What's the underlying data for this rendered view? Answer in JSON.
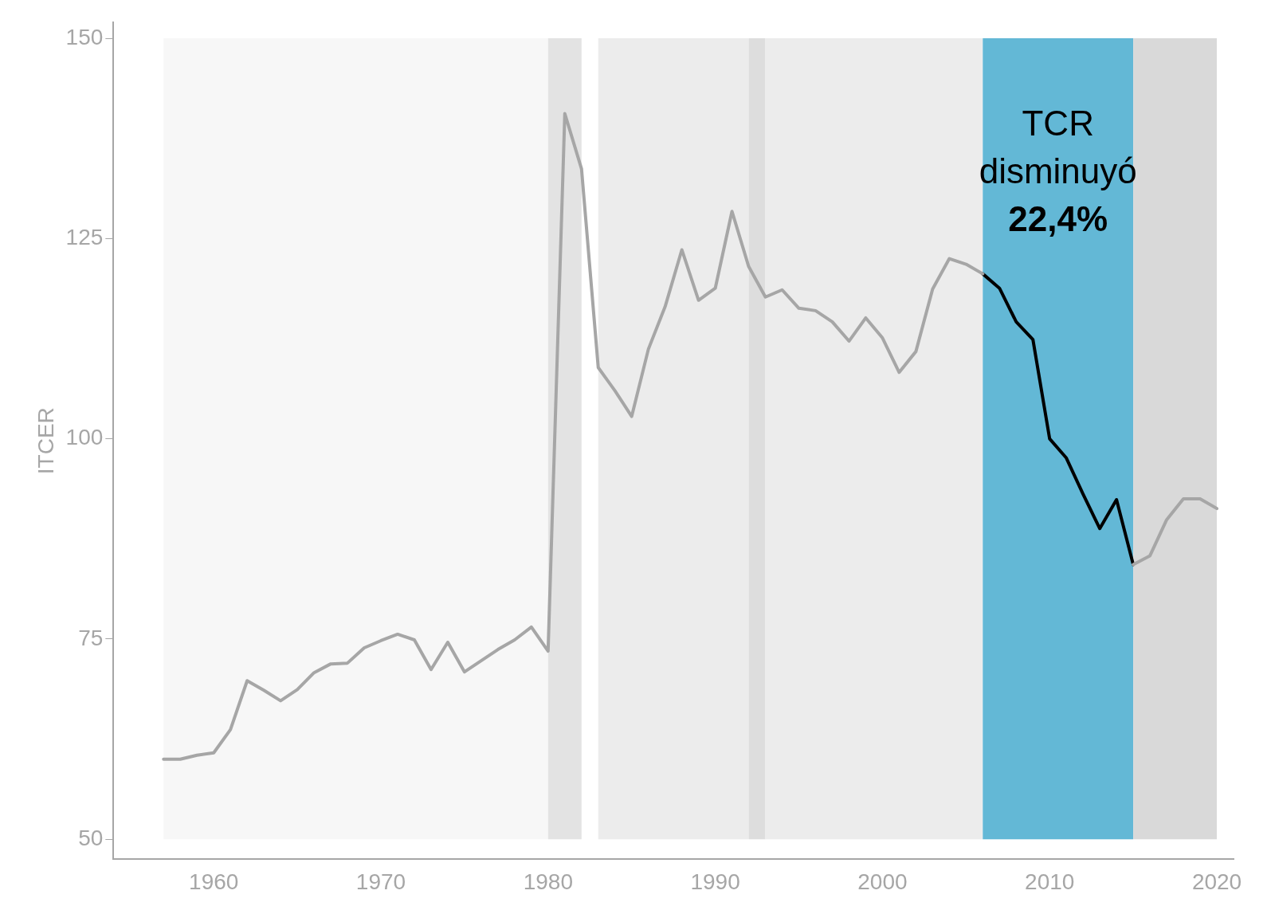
{
  "chart_data": {
    "type": "line",
    "ylabel": "ITCER",
    "series": [
      {
        "color": "#a6a6a6",
        "x": [
          1957,
          1958,
          1959,
          1960,
          1961,
          1962,
          1963,
          1964,
          1965,
          1966,
          1967,
          1968,
          1969,
          1970,
          1971,
          1972,
          1973,
          1974,
          1975,
          1976,
          1977,
          1978,
          1979,
          1980,
          1981,
          1982,
          1983,
          1984,
          1985,
          1986,
          1987,
          1988,
          1989,
          1990,
          1991,
          1992,
          1993,
          1994,
          1995,
          1996,
          1997,
          1998,
          1999,
          2000,
          2001,
          2002,
          2003,
          2004,
          2005,
          2006,
          2007,
          2008,
          2009,
          2010,
          2011,
          2012,
          2013,
          2014,
          2015,
          2016,
          2017,
          2018,
          2019,
          2020
        ],
        "values": [
          60.0,
          60.0,
          60.5,
          60.8,
          63.7,
          69.8,
          68.6,
          67.3,
          68.7,
          70.8,
          71.9,
          72.0,
          73.9,
          74.8,
          75.6,
          74.9,
          71.2,
          74.6,
          70.9,
          72.3,
          73.7,
          74.9,
          76.5,
          73.5,
          140.6,
          133.7,
          108.9,
          106.0,
          102.8,
          111.2,
          116.5,
          123.6,
          117.3,
          118.8,
          128.4,
          121.5,
          117.7,
          118.6,
          116.3,
          116.0,
          114.6,
          112.2,
          115.1,
          112.6,
          108.3,
          110.9,
          118.7,
          122.5,
          121.8,
          120.6,
          null,
          null,
          null,
          null,
          null,
          null,
          null,
          null,
          84.3,
          85.4,
          89.9,
          92.5,
          92.5,
          91.3
        ]
      },
      {
        "color": "#000000",
        "x": [
          2006,
          2007,
          2008,
          2009,
          2010,
          2011,
          2012,
          2013,
          2014,
          2015
        ],
        "values": [
          120.6,
          118.8,
          114.6,
          112.4,
          100.0,
          97.6,
          93.1,
          88.8,
          92.4,
          84.3
        ]
      }
    ],
    "bands": [
      {
        "axis": "x",
        "from": 1957,
        "to": 1980,
        "color": "#f7f7f7"
      },
      {
        "axis": "x",
        "from": 1980,
        "to": 1982,
        "color": "#e3e3e3"
      },
      {
        "axis": "x",
        "from": 1983,
        "to": 1992,
        "color": "#ececec"
      },
      {
        "axis": "x",
        "from": 1992,
        "to": 1993,
        "color": "#dddddd"
      },
      {
        "axis": "x",
        "from": 1993,
        "to": 2006,
        "color": "#ececec"
      },
      {
        "axis": "x",
        "from": 2006,
        "to": 2015,
        "color": "#63b8d6"
      },
      {
        "axis": "x",
        "from": 2015,
        "to": 2020,
        "color": "#d9d9d9"
      }
    ],
    "annotations": [
      "TCR",
      "disminuyó",
      "22,4%"
    ],
    "xlim": [
      1954,
      2021
    ],
    "xticks": [
      1960,
      1970,
      1980,
      1990,
      2000,
      2010,
      2020
    ],
    "ylim": [
      47.5,
      152
    ],
    "yticks": [
      50,
      75,
      100,
      125,
      150
    ],
    "grid": false,
    "legend": false,
    "marker": "none",
    "line_style": "solid"
  }
}
